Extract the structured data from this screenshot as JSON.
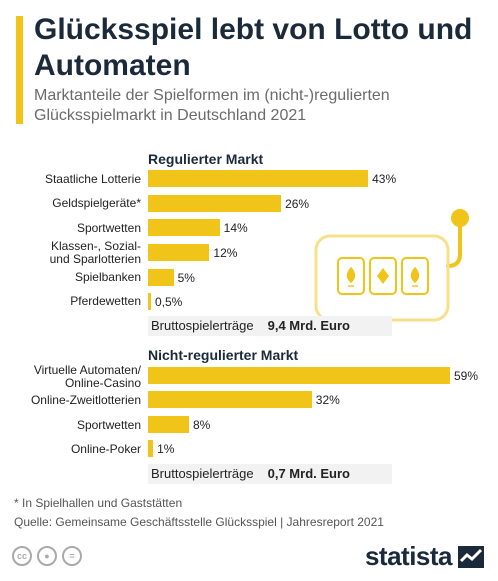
{
  "title": "Glücksspiel lebt von Lotto und Automaten",
  "subtitle": "Marktanteile der Spielformen im (nicht-)regulierten Glücksspielmarkt in Deutschland 2021",
  "chart_data": [
    {
      "type": "bar",
      "orientation": "horizontal",
      "title": "Regulierter Markt",
      "categories": [
        "Staatliche Lotterie",
        "Geldspielgeräte*",
        "Sportwetten",
        "Klassen-, Sozial- und Sparlotterien",
        "Spielbanken",
        "Pferdewetten"
      ],
      "values": [
        43,
        26,
        14,
        12,
        5,
        0.5
      ],
      "value_labels": [
        "43%",
        "26%",
        "14%",
        "12%",
        "5%",
        "0,5%"
      ],
      "unit": "%",
      "total_label": "Bruttospielerträge",
      "total_value": "9,4 Mrd. Euro"
    },
    {
      "type": "bar",
      "orientation": "horizontal",
      "title": "Nicht-regulierter Markt",
      "categories": [
        "Virtuelle Automaten/ Online-Casino",
        "Online-Zweitlotterien",
        "Sportwetten",
        "Online-Poker"
      ],
      "values": [
        59,
        32,
        8,
        1
      ],
      "value_labels": [
        "59%",
        "32%",
        "8%",
        "1%"
      ],
      "unit": "%",
      "total_label": "Bruttospielerträge",
      "total_value": "0,7 Mrd. Euro"
    }
  ],
  "footnote": "* In Spielhallen und Gaststätten",
  "source": "Quelle: Gemeinsame Geschäftsstelle Glücksspiel | Jahresreport 2021",
  "license_icons": [
    "cc-icon",
    "by-icon",
    "nd-icon"
  ],
  "brand": "statista",
  "colors": {
    "accent": "#f0c419",
    "title": "#1b2a3a",
    "subtitle": "#6b6b6b",
    "total_bg": "#f2f2f2"
  }
}
